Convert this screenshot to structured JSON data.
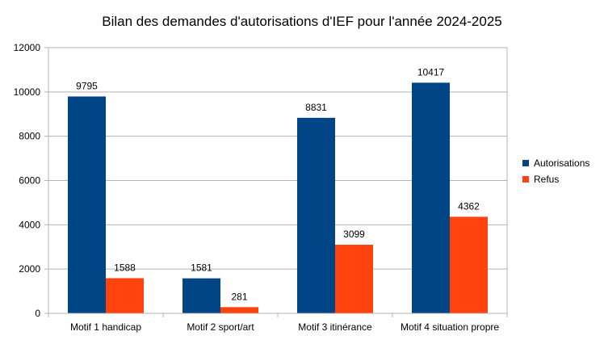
{
  "chart_data": {
    "type": "bar",
    "title": "Bilan des demandes d'autorisations d'IEF pour l'année 2024-2025",
    "categories": [
      "Motif 1 handicap",
      "Motif 2 sport/art",
      "Motif 3 itinérance",
      "Motif 4 situation propre"
    ],
    "series": [
      {
        "name": "Autorisations",
        "values": [
          9795,
          1581,
          8831,
          10417
        ],
        "color": "#004586"
      },
      {
        "name": "Refus",
        "values": [
          1588,
          281,
          3099,
          4362
        ],
        "color": "#ff420e"
      }
    ],
    "ylim": [
      0,
      12000
    ],
    "yticks": [
      0,
      2000,
      4000,
      6000,
      8000,
      10000,
      12000
    ],
    "grid": true,
    "legend_position": "right",
    "data_labels": true
  }
}
